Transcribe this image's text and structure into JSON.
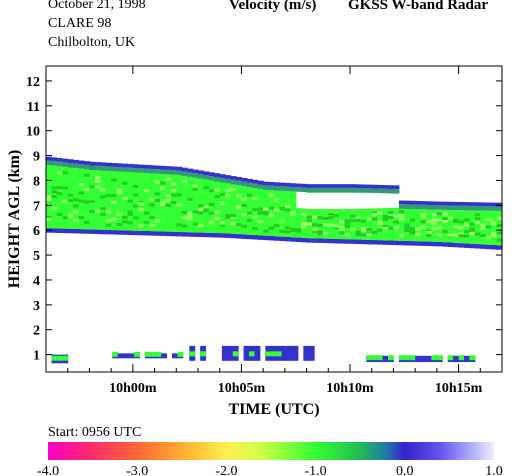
{
  "header": {
    "date": "October  21, 1998",
    "campaign": "CLARE 98",
    "location": "Chilbolton, UK",
    "quantity": "Velocity (m/s)",
    "instrument": "GKSS  W-band Radar"
  },
  "footer": {
    "start": "Start: 0956 UTC"
  },
  "colors": {
    "bright_green": "#33ff33",
    "light_green": "#99ff66",
    "mid_green": "#22cc22",
    "teal": "#339977",
    "blue": "#3333cc",
    "violet": "#6644dd"
  },
  "chart_data": {
    "type": "heatmap",
    "title": "Velocity (m/s)",
    "xlabel": "TIME (UTC)",
    "ylabel": "HEIGHT AGL (km)",
    "x_ticks": [
      "10h00m",
      "10h05m",
      "10h10m",
      "10h15m"
    ],
    "x_tick_minutes": [
      0,
      5,
      10,
      15
    ],
    "xlim_minutes": [
      -4,
      17
    ],
    "y_ticks": [
      "1",
      "2",
      "3",
      "4",
      "5",
      "6",
      "7",
      "8",
      "9",
      "10",
      "11",
      "12"
    ],
    "ylim": [
      0.3,
      12.6
    ],
    "colorbar": {
      "labels": [
        "-4.0",
        "-3.0",
        "-2.0",
        "-1.0",
        "0.0",
        "1.0"
      ],
      "values": [
        -4.0,
        -3.0,
        -2.0,
        -1.0,
        0.0,
        1.0
      ],
      "stops": [
        {
          "v": -4.0,
          "c": "#ff00cc"
        },
        {
          "v": -3.6,
          "c": "#ff2277"
        },
        {
          "v": -3.0,
          "c": "#ff6633"
        },
        {
          "v": -2.4,
          "c": "#ffbb33"
        },
        {
          "v": -2.0,
          "c": "#ffee55"
        },
        {
          "v": -1.6,
          "c": "#ccff44"
        },
        {
          "v": -1.0,
          "c": "#33ff33"
        },
        {
          "v": -0.5,
          "c": "#22bb55"
        },
        {
          "v": -0.2,
          "c": "#2277aa"
        },
        {
          "v": 0.0,
          "c": "#3322cc"
        },
        {
          "v": 0.4,
          "c": "#6655ee"
        },
        {
          "v": 0.8,
          "c": "#bbbbff"
        },
        {
          "v": 1.0,
          "c": "#eeeeff"
        }
      ]
    },
    "upper_cloud": {
      "top_km": [
        [
          -4,
          8.9
        ],
        [
          -2,
          8.7
        ],
        [
          0,
          8.6
        ],
        [
          2,
          8.5
        ],
        [
          4,
          8.2
        ],
        [
          6,
          7.9
        ],
        [
          8,
          7.8
        ],
        [
          10,
          7.8
        ],
        [
          12,
          7.75
        ]
      ],
      "base_km": [
        [
          -4,
          5.9
        ],
        [
          -2,
          5.85
        ],
        [
          0,
          5.8
        ],
        [
          2,
          5.75
        ],
        [
          4,
          5.7
        ],
        [
          6,
          5.6
        ],
        [
          8,
          5.5
        ],
        [
          10,
          5.45
        ],
        [
          12,
          5.4
        ],
        [
          14,
          5.35
        ],
        [
          17,
          5.2
        ]
      ],
      "lower_layer_top_km": [
        [
          4,
          6.9
        ],
        [
          6,
          7.0
        ],
        [
          8,
          6.85
        ],
        [
          10,
          6.85
        ],
        [
          12,
          6.9
        ],
        [
          14,
          6.85
        ],
        [
          17,
          6.8
        ]
      ],
      "gap_km": {
        "x_min": [
          7.5,
          12.5
        ],
        "y_km": [
          6.65,
          7.5
        ]
      }
    },
    "low_echoes": [
      {
        "x_min": [
          -4,
          -3.2
        ],
        "y_km": [
          0.65,
          1.0
        ]
      },
      {
        "x_min": [
          -1.2,
          2.2
        ],
        "y_km": [
          0.85,
          1.05
        ]
      },
      {
        "x_min": [
          2.6,
          8.2
        ],
        "y_km": [
          0.75,
          1.35
        ]
      },
      {
        "x_min": [
          10.5,
          15.6
        ],
        "y_km": [
          0.7,
          0.95
        ]
      }
    ]
  }
}
